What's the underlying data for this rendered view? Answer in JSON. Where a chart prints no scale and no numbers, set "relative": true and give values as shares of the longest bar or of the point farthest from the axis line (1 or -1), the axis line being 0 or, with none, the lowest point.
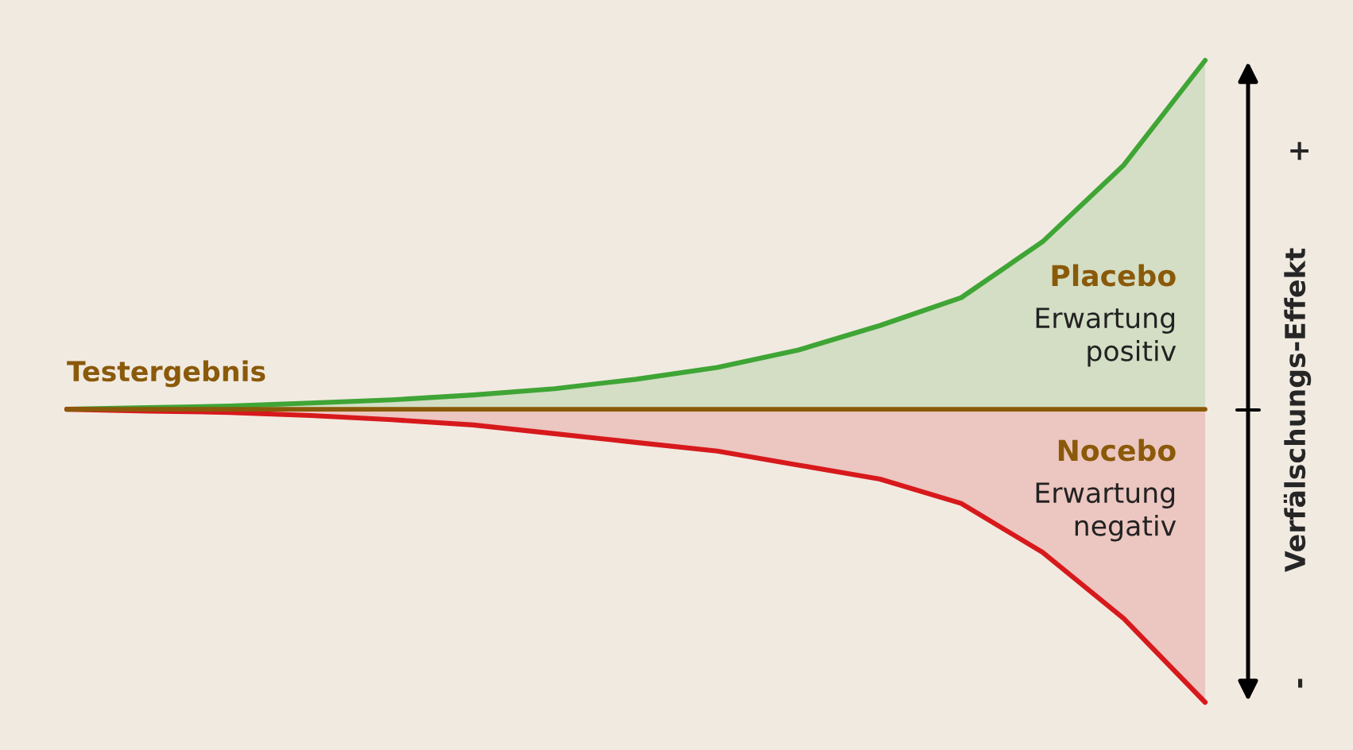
{
  "chart_data": {
    "type": "area",
    "relative": true,
    "ylabel": "Verfälschungs-Effekt",
    "categories": [
      null,
      null,
      null,
      null,
      null,
      null,
      null,
      null,
      null,
      null,
      null,
      null,
      null,
      null,
      null
    ],
    "series": [
      {
        "name": "Placebo",
        "color": "#3fa535",
        "values": [
          0,
          0.005,
          0.009,
          0.018,
          0.027,
          0.041,
          0.059,
          0.086,
          0.12,
          0.17,
          0.24,
          0.32,
          0.48,
          0.7,
          1
        ]
      },
      {
        "name": "Nocebo",
        "color": "#d7191c",
        "values": [
          0,
          -0.005,
          -0.009,
          -0.018,
          -0.03,
          -0.045,
          -0.07,
          -0.095,
          -0.12,
          -0.16,
          -0.2,
          -0.27,
          -0.41,
          -0.6,
          -0.84
        ]
      }
    ],
    "ref_lines": [
      {
        "axis": "y",
        "value": 0,
        "label": "Testergebnis",
        "color": "#8a5a0a"
      }
    ],
    "annotations": [
      "Erwartung\npositiv",
      "Erwartung\nnegativ",
      "+",
      "-"
    ],
    "legend": false,
    "grid": false
  }
}
